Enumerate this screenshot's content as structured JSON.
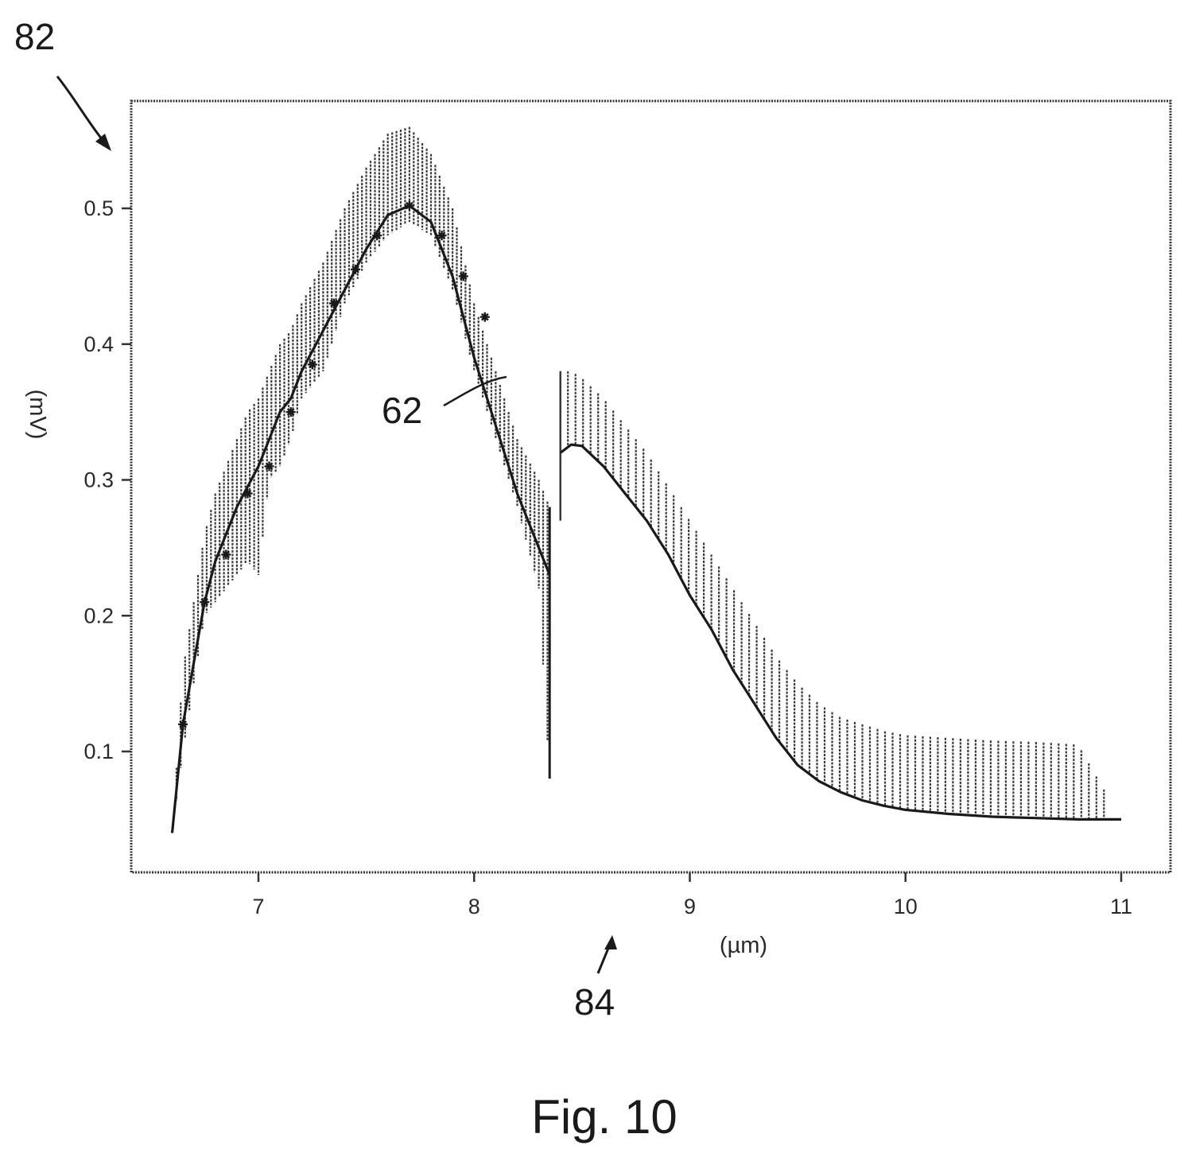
{
  "figure": {
    "caption": "Fig. 10",
    "reference_labels": {
      "figure_ref": "82",
      "axis_ref": "84",
      "curve_ref": "62"
    }
  },
  "chart_data": {
    "type": "line",
    "xlabel": "(µm)",
    "ylabel": "(mV)",
    "xlim": [
      6.4,
      11.2
    ],
    "ylim": [
      0.0,
      0.57
    ],
    "x_ticks": [
      7,
      8,
      9,
      10,
      11
    ],
    "y_ticks": [
      0.1,
      0.2,
      0.3,
      0.4,
      0.5
    ],
    "x_tick_labels": [
      "7",
      "8",
      "9",
      "10",
      "11"
    ],
    "y_tick_labels": [
      "0.1",
      "0.2",
      "0.3",
      "0.4",
      "0.5"
    ],
    "grid": false,
    "legend": "none",
    "colors": {
      "curve": "#1a1a1a",
      "band": "#3a3a3a",
      "frame": "#333333"
    },
    "series": [
      {
        "style": "line with vertical error bars",
        "x": [
          6.6,
          6.65,
          6.7,
          6.75,
          6.8,
          6.85,
          6.9,
          6.95,
          7.0,
          7.05,
          7.1,
          7.15,
          7.2,
          7.3,
          7.4,
          7.5,
          7.6,
          7.7,
          7.8,
          7.9,
          8.0,
          8.1,
          8.2,
          8.3,
          8.35
        ],
        "y": [
          0.04,
          0.12,
          0.165,
          0.21,
          0.24,
          0.26,
          0.28,
          0.295,
          0.31,
          0.33,
          0.35,
          0.36,
          0.38,
          0.41,
          0.44,
          0.47,
          0.495,
          0.502,
          0.49,
          0.45,
          0.39,
          0.34,
          0.29,
          0.25,
          0.23
        ],
        "upper": [
          0.04,
          0.16,
          0.21,
          0.26,
          0.29,
          0.31,
          0.33,
          0.35,
          0.36,
          0.38,
          0.4,
          0.41,
          0.43,
          0.46,
          0.5,
          0.53,
          0.555,
          0.56,
          0.54,
          0.5,
          0.43,
          0.38,
          0.33,
          0.3,
          0.28
        ],
        "lower": [
          0.04,
          0.1,
          0.15,
          0.2,
          0.21,
          0.22,
          0.23,
          0.24,
          0.23,
          0.3,
          0.31,
          0.33,
          0.36,
          0.38,
          0.43,
          0.46,
          0.48,
          0.49,
          0.48,
          0.44,
          0.38,
          0.33,
          0.28,
          0.22,
          0.08
        ]
      },
      {
        "style": "line with one-sided upper band",
        "x": [
          8.4,
          8.45,
          8.5,
          8.6,
          8.7,
          8.8,
          8.9,
          9.0,
          9.1,
          9.2,
          9.3,
          9.4,
          9.5,
          9.6,
          9.7,
          9.8,
          9.9,
          10.0,
          10.2,
          10.4,
          10.6,
          10.8,
          11.0
        ],
        "y": [
          0.32,
          0.326,
          0.325,
          0.31,
          0.29,
          0.27,
          0.245,
          0.215,
          0.19,
          0.16,
          0.135,
          0.11,
          0.09,
          0.078,
          0.07,
          0.064,
          0.06,
          0.057,
          0.054,
          0.052,
          0.051,
          0.05,
          0.05
        ],
        "upper": [
          0.38,
          0.38,
          0.375,
          0.36,
          0.34,
          0.32,
          0.295,
          0.27,
          0.245,
          0.22,
          0.195,
          0.17,
          0.15,
          0.135,
          0.125,
          0.12,
          0.115,
          0.112,
          0.11,
          0.108,
          0.107,
          0.105,
          0.05
        ]
      }
    ],
    "markers": {
      "x": [
        6.65,
        6.75,
        6.85,
        6.95,
        7.05,
        7.15,
        7.25,
        7.35,
        7.45,
        7.55,
        7.7,
        7.85,
        7.95,
        8.05
      ],
      "y": [
        0.12,
        0.21,
        0.245,
        0.29,
        0.31,
        0.35,
        0.385,
        0.43,
        0.455,
        0.48,
        0.502,
        0.48,
        0.45,
        0.42
      ]
    }
  }
}
